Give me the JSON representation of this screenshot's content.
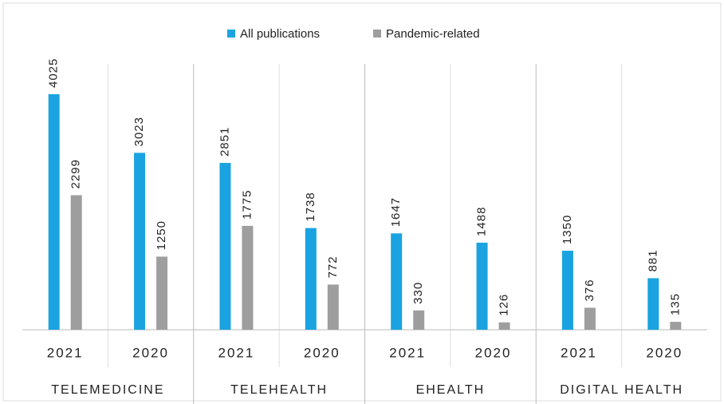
{
  "chart_data": {
    "type": "bar",
    "categories": [
      "2021",
      "2020",
      "2021",
      "2020",
      "2021",
      "2020",
      "2021",
      "2020"
    ],
    "groups": [
      "TELEMEDICINE",
      "TELEHEALTH",
      "EHEALTH",
      "DIGITAL HEALTH"
    ],
    "series": [
      {
        "name": "All publications",
        "color": "#1aa3e0",
        "values": [
          4025,
          3023,
          2851,
          1738,
          1647,
          1488,
          1350,
          881
        ]
      },
      {
        "name": "Pandemic-related",
        "color": "#9e9e9e",
        "values": [
          2299,
          1250,
          1775,
          772,
          330,
          126,
          376,
          135
        ]
      }
    ],
    "legend": "top"
  }
}
